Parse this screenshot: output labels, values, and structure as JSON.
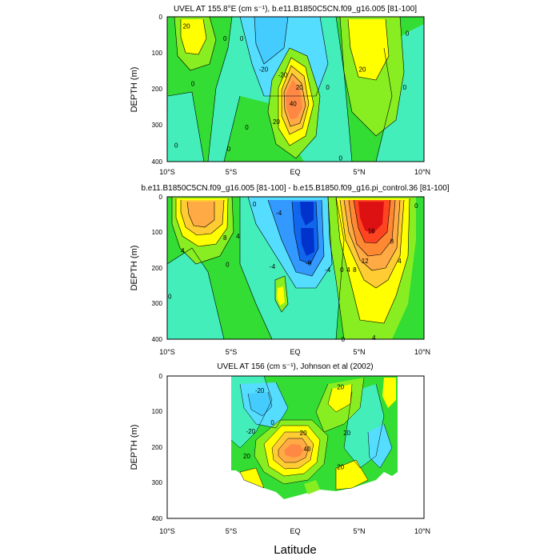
{
  "figure": {
    "xlabel": "Latitude"
  },
  "chart_data": [
    {
      "type": "heatmap",
      "title": "UVEL AT 155.8°E (cm s⁻¹), b.e11.B1850C5CN.f09_g16.005 [81-100]",
      "ylabel": "DEPTH (m)",
      "xticks": [
        "10°S",
        "5°S",
        "EQ",
        "5°N",
        "10°N"
      ],
      "yticks": [
        "0",
        "100",
        "200",
        "300",
        "400"
      ],
      "xlim": [
        -10,
        10
      ],
      "ylim": [
        400,
        0
      ],
      "contour_labels": [
        {
          "text": "20",
          "lat": -8.5,
          "depth": 25
        },
        {
          "text": "0",
          "lat": -5.5,
          "depth": 60
        },
        {
          "text": "0",
          "lat": -4.2,
          "depth": 60
        },
        {
          "text": "0",
          "lat": -9.3,
          "depth": 355
        },
        {
          "text": "0",
          "lat": -5.2,
          "depth": 365
        },
        {
          "text": "0",
          "lat": -3.8,
          "depth": 305
        },
        {
          "text": "0",
          "lat": -8.0,
          "depth": 185
        },
        {
          "text": "-20",
          "lat": -2.5,
          "depth": 145
        },
        {
          "text": "-20",
          "lat": -1.0,
          "depth": 160
        },
        {
          "text": "0",
          "lat": 2.5,
          "depth": 195
        },
        {
          "text": "0",
          "lat": 3.5,
          "depth": 390
        },
        {
          "text": "0",
          "lat": 8.5,
          "depth": 195
        },
        {
          "text": "20",
          "lat": 0.3,
          "depth": 195
        },
        {
          "text": "40",
          "lat": -0.2,
          "depth": 240
        },
        {
          "text": "20",
          "lat": -1.5,
          "depth": 290
        },
        {
          "text": "20",
          "lat": 5.2,
          "depth": 145
        },
        {
          "text": "0",
          "lat": 8.7,
          "depth": 45
        }
      ]
    },
    {
      "type": "heatmap",
      "title": "b.e11.B1850C5CN.f09_g16.005 [81-100] - b.e15.B1850.f09_g16.pi_control.36 [81-100]",
      "ylabel": "DEPTH (m)",
      "xticks": [
        "10°S",
        "5°S",
        "EQ",
        "5°N",
        "10°N"
      ],
      "yticks": [
        "0",
        "100",
        "200",
        "300",
        "400"
      ],
      "xlim": [
        -10,
        10
      ],
      "ylim": [
        400,
        0
      ],
      "contour_labels": [
        {
          "text": "4",
          "lat": -4.5,
          "depth": 110
        },
        {
          "text": "8",
          "lat": -5.5,
          "depth": 115
        },
        {
          "text": "4",
          "lat": -8.8,
          "depth": 150
        },
        {
          "text": "0",
          "lat": -5.3,
          "depth": 190
        },
        {
          "text": "0",
          "lat": -9.8,
          "depth": 280
        },
        {
          "text": "0",
          "lat": -3.2,
          "depth": 20
        },
        {
          "text": "-4",
          "lat": -1.3,
          "depth": 45
        },
        {
          "text": "-4",
          "lat": -1.8,
          "depth": 195
        },
        {
          "text": "-8",
          "lat": 1.0,
          "depth": 185
        },
        {
          "text": "-4",
          "lat": 2.5,
          "depth": 205
        },
        {
          "text": "0",
          "lat": 3.6,
          "depth": 205
        },
        {
          "text": "4",
          "lat": 4.1,
          "depth": 205
        },
        {
          "text": "8",
          "lat": 4.6,
          "depth": 205
        },
        {
          "text": "12",
          "lat": 5.4,
          "depth": 180
        },
        {
          "text": "16",
          "lat": 5.9,
          "depth": 95
        },
        {
          "text": "8",
          "lat": 7.5,
          "depth": 125
        },
        {
          "text": "4",
          "lat": 8.1,
          "depth": 180
        },
        {
          "text": "0",
          "lat": 9.4,
          "depth": 25
        },
        {
          "text": "4",
          "lat": 6.1,
          "depth": 395
        },
        {
          "text": "0",
          "lat": 3.7,
          "depth": 400
        }
      ]
    },
    {
      "type": "heatmap",
      "title": "UVEL AT 156 (cm s⁻¹), Johnson et al (2002)",
      "ylabel": "DEPTH (m)",
      "xticks": [
        "10°S",
        "5°S",
        "EQ",
        "5°N",
        "10°N"
      ],
      "yticks": [
        "0",
        "100",
        "200",
        "300",
        "400"
      ],
      "xlim": [
        -10,
        10
      ],
      "ylim": [
        400,
        0
      ],
      "contour_labels": [
        {
          "text": "-20",
          "lat": -2.8,
          "depth": 40
        },
        {
          "text": "0",
          "lat": -1.8,
          "depth": 130
        },
        {
          "text": "-20",
          "lat": -3.5,
          "depth": 155
        },
        {
          "text": "20",
          "lat": 3.5,
          "depth": 30
        },
        {
          "text": "20",
          "lat": 4.0,
          "depth": 160
        },
        {
          "text": "20",
          "lat": 0.6,
          "depth": 160
        },
        {
          "text": "40",
          "lat": 0.9,
          "depth": 205
        },
        {
          "text": "20",
          "lat": -3.8,
          "depth": 225
        },
        {
          "text": "20",
          "lat": 3.5,
          "depth": 255
        }
      ]
    }
  ]
}
